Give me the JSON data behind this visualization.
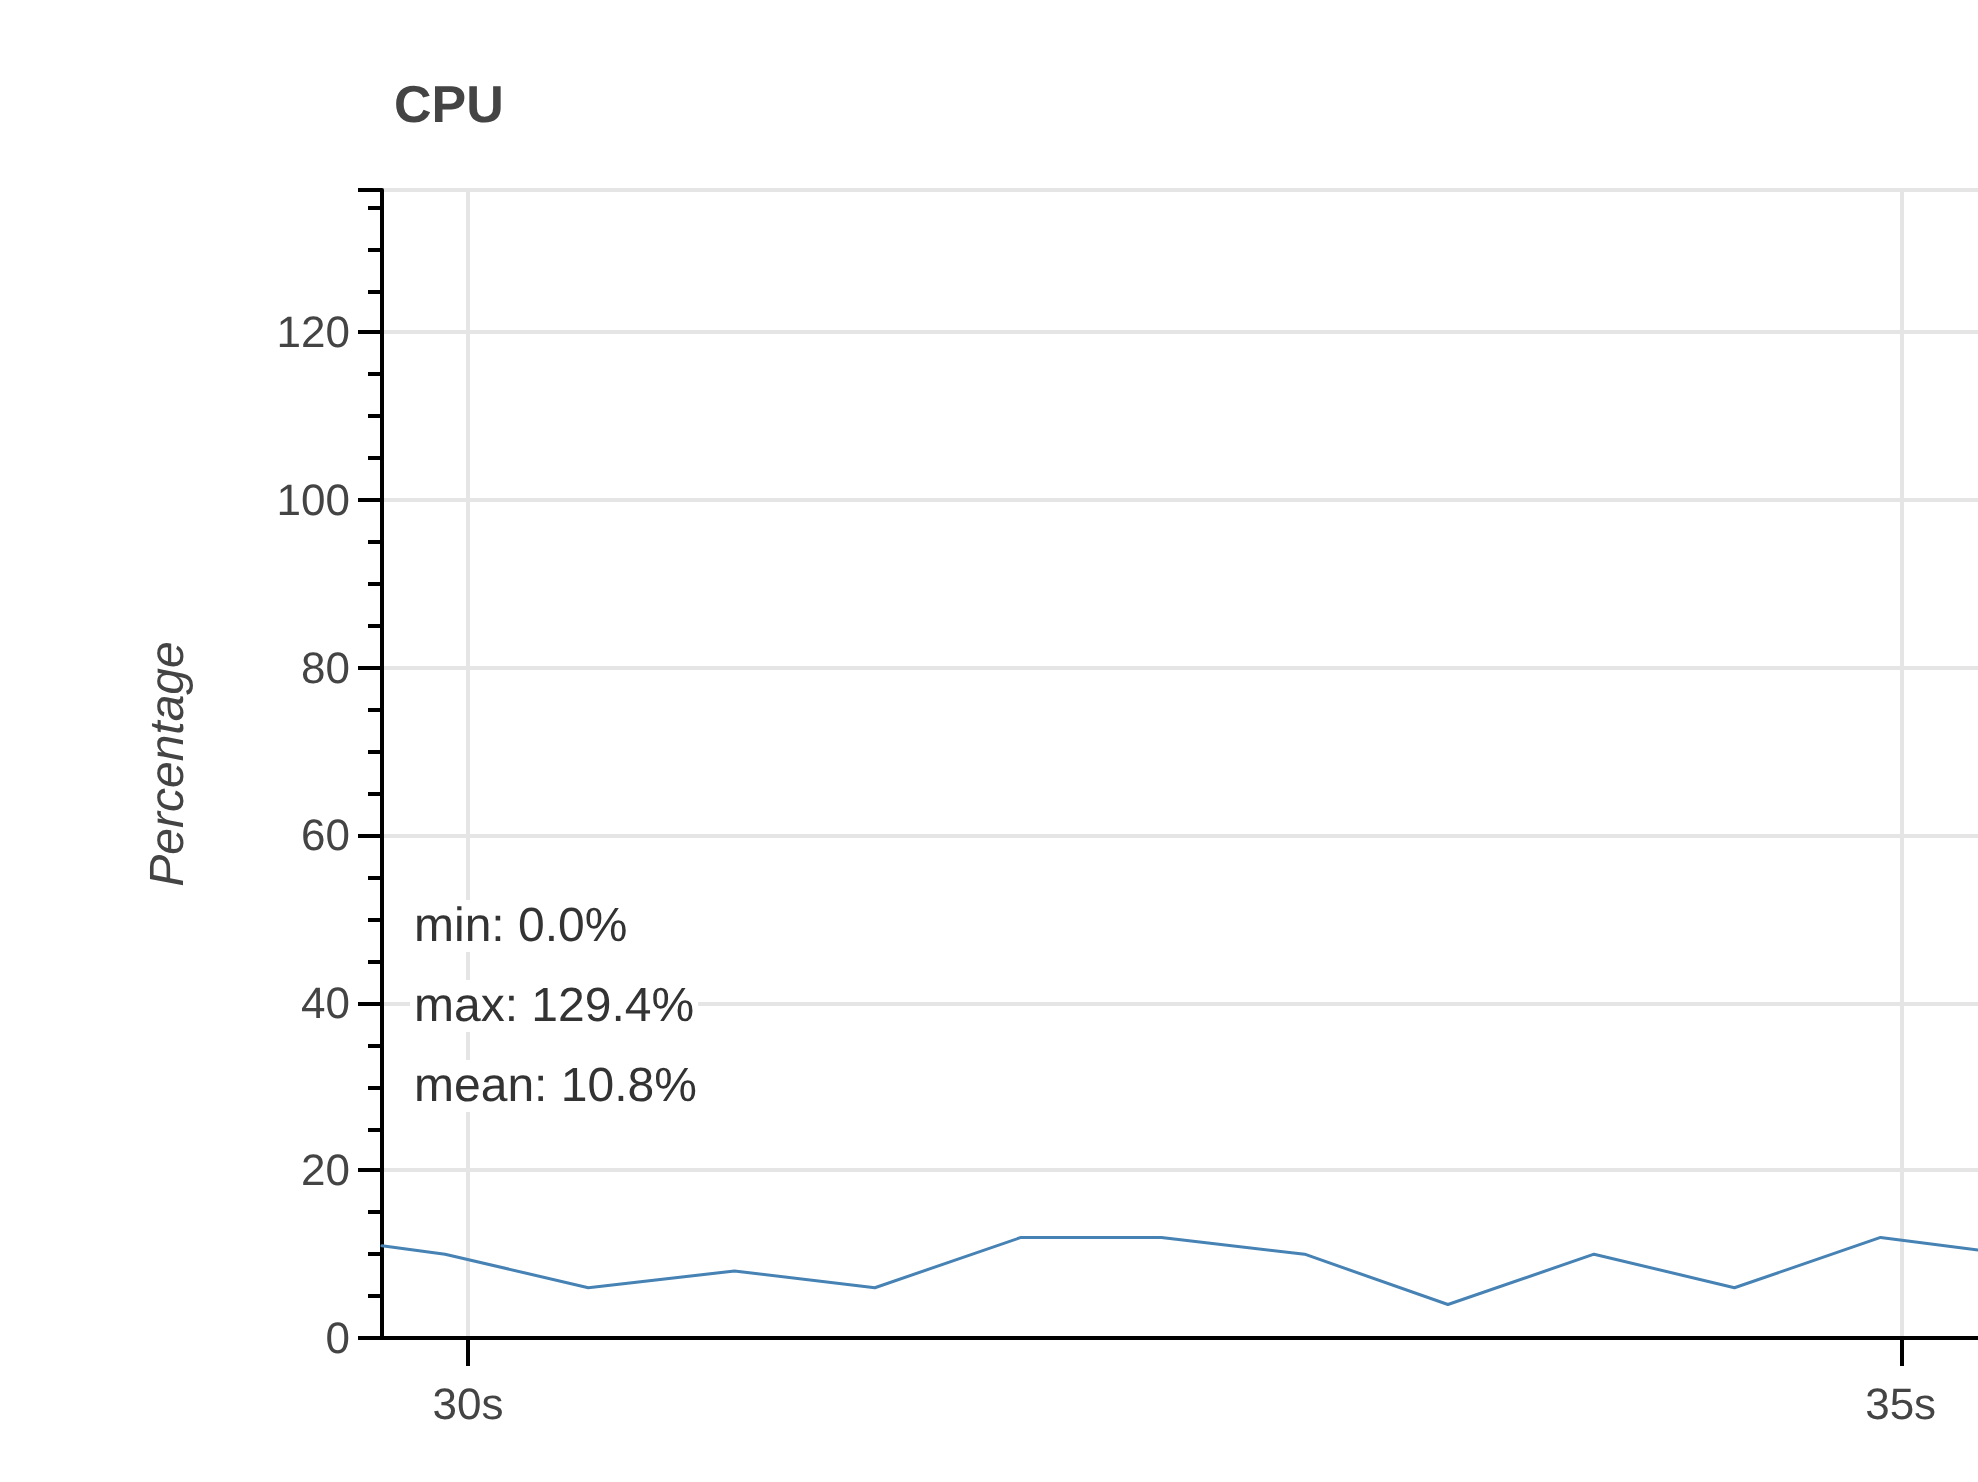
{
  "chart_data": {
    "type": "line",
    "title": "CPU",
    "ylabel": "Percentage",
    "x": [
      29.7,
      29.92,
      30.42,
      30.93,
      31.42,
      31.93,
      32.42,
      32.92,
      33.42,
      33.93,
      34.42,
      34.93,
      35.27
    ],
    "series": [
      {
        "color": "#4682b4",
        "values": [
          11,
          10,
          6,
          8,
          6,
          12,
          12,
          10,
          4,
          10,
          6,
          12,
          10.5
        ]
      }
    ],
    "xlim": [
      29.7,
      35.27
    ],
    "xticks": [
      {
        "value": 30,
        "label": "30s"
      },
      {
        "value": 35,
        "label": "35s"
      }
    ],
    "ylim": [
      0,
      137
    ],
    "yticks": [
      0,
      20,
      40,
      60,
      80,
      100,
      120
    ],
    "grid": true,
    "marker": "none",
    "line_style": "solid",
    "annotations": [
      "min: 0.0%",
      "max: 129.4%",
      "mean: 10.8%"
    ]
  }
}
